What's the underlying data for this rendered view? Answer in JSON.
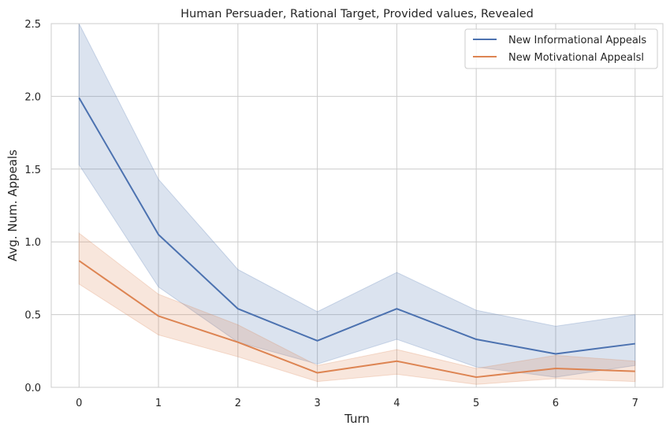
{
  "chart_data": {
    "type": "line",
    "title": "Human Persuader, Rational Target, Provided values, Revealed",
    "xlabel": "Turn",
    "ylabel": "Avg. Num. Appeals",
    "x": [
      0,
      1,
      2,
      3,
      4,
      5,
      6,
      7
    ],
    "xticks": [
      "0",
      "1",
      "2",
      "3",
      "4",
      "5",
      "6",
      "7"
    ],
    "yticks": [
      "0.0",
      "0.5",
      "1.0",
      "1.5",
      "2.0",
      "2.5"
    ],
    "xlim": [
      -0.35,
      7.35
    ],
    "ylim": [
      0,
      2.5
    ],
    "grid": true,
    "legend_position": "top-right",
    "series": [
      {
        "name": "New Informational Appeals",
        "color": "#4c72b0",
        "values": [
          1.99,
          1.05,
          0.54,
          0.32,
          0.54,
          0.33,
          0.23,
          0.3
        ],
        "ci_low": [
          1.53,
          0.69,
          0.31,
          0.16,
          0.33,
          0.14,
          0.07,
          0.15
        ],
        "ci_high": [
          2.5,
          1.43,
          0.81,
          0.52,
          0.79,
          0.53,
          0.42,
          0.5
        ]
      },
      {
        "name": "New Motivational Appealsl",
        "color": "#dd8452",
        "values": [
          0.87,
          0.49,
          0.31,
          0.1,
          0.18,
          0.07,
          0.13,
          0.11
        ],
        "ci_low": [
          0.71,
          0.36,
          0.21,
          0.04,
          0.09,
          0.02,
          0.06,
          0.04
        ],
        "ci_high": [
          1.06,
          0.64,
          0.43,
          0.15,
          0.26,
          0.13,
          0.22,
          0.18
        ]
      }
    ]
  }
}
